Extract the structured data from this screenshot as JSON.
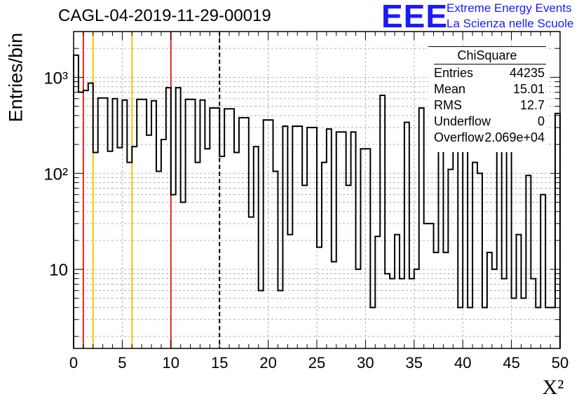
{
  "header": {
    "run_title": "CAGL-04-2019-11-29-00019",
    "logo_text": "EEE",
    "logo_line1": "Extreme Energy Events",
    "logo_line2": "La Scienza nelle Scuole",
    "logo_color": "#1a1aff"
  },
  "stats_box": {
    "title": "ChiSquare",
    "rows": [
      {
        "key": "Entries",
        "value": "44235"
      },
      {
        "key": "Mean",
        "value": "15.01"
      },
      {
        "key": "RMS",
        "value": "12.7"
      },
      {
        "key": "Underflow",
        "value": "0"
      },
      {
        "key": "Overflow",
        "value": "2.069e+04"
      }
    ]
  },
  "chart_data": {
    "type": "histogram-step",
    "title": "CAGL-04-2019-11-29-00019",
    "xlabel": "X²",
    "ylabel": "Entries/bin",
    "xlim": [
      0,
      50
    ],
    "ylim": [
      1.5,
      3000
    ],
    "yscale": "log",
    "bin_width": 0.5,
    "x_ticks": [
      "0",
      "5",
      "10",
      "15",
      "20",
      "25",
      "30",
      "35",
      "40",
      "45",
      "50"
    ],
    "y_ticks": [
      {
        "value": 10,
        "label": "10"
      },
      {
        "value": 100,
        "label": "10²"
      },
      {
        "value": 1000,
        "label": "10³"
      }
    ],
    "grid": true,
    "values": [
      1700,
      700,
      730,
      870,
      165,
      610,
      610,
      170,
      600,
      185,
      580,
      130,
      190,
      590,
      590,
      250,
      570,
      105,
      225,
      780,
      60,
      780,
      50,
      590,
      590,
      130,
      580,
      180,
      480,
      480,
      150,
      470,
      470,
      165,
      380,
      380,
      35,
      190,
      6,
      360,
      360,
      105,
      6,
      310,
      23,
      310,
      310,
      75,
      300,
      300,
      17,
      130,
      290,
      12,
      270,
      270,
      75,
      270,
      10,
      180,
      180,
      4,
      22,
      650,
      9,
      8,
      23,
      8,
      340,
      8,
      10,
      480,
      30,
      30,
      15,
      200,
      15,
      110,
      410,
      4,
      280,
      4,
      130,
      100,
      4,
      15,
      10,
      420,
      8,
      380,
      5,
      23,
      5,
      95,
      8,
      4,
      60,
      4,
      4,
      420
    ],
    "vertical_lines": [
      {
        "x": 1,
        "color": "#e3251b",
        "style": "solid"
      },
      {
        "x": 2,
        "color": "#f5c400",
        "style": "solid"
      },
      {
        "x": 6,
        "color": "#f5c400",
        "style": "solid"
      },
      {
        "x": 10,
        "color": "#e3251b",
        "style": "solid"
      },
      {
        "x": 15,
        "color": "#000000",
        "style": "dashed"
      }
    ]
  }
}
